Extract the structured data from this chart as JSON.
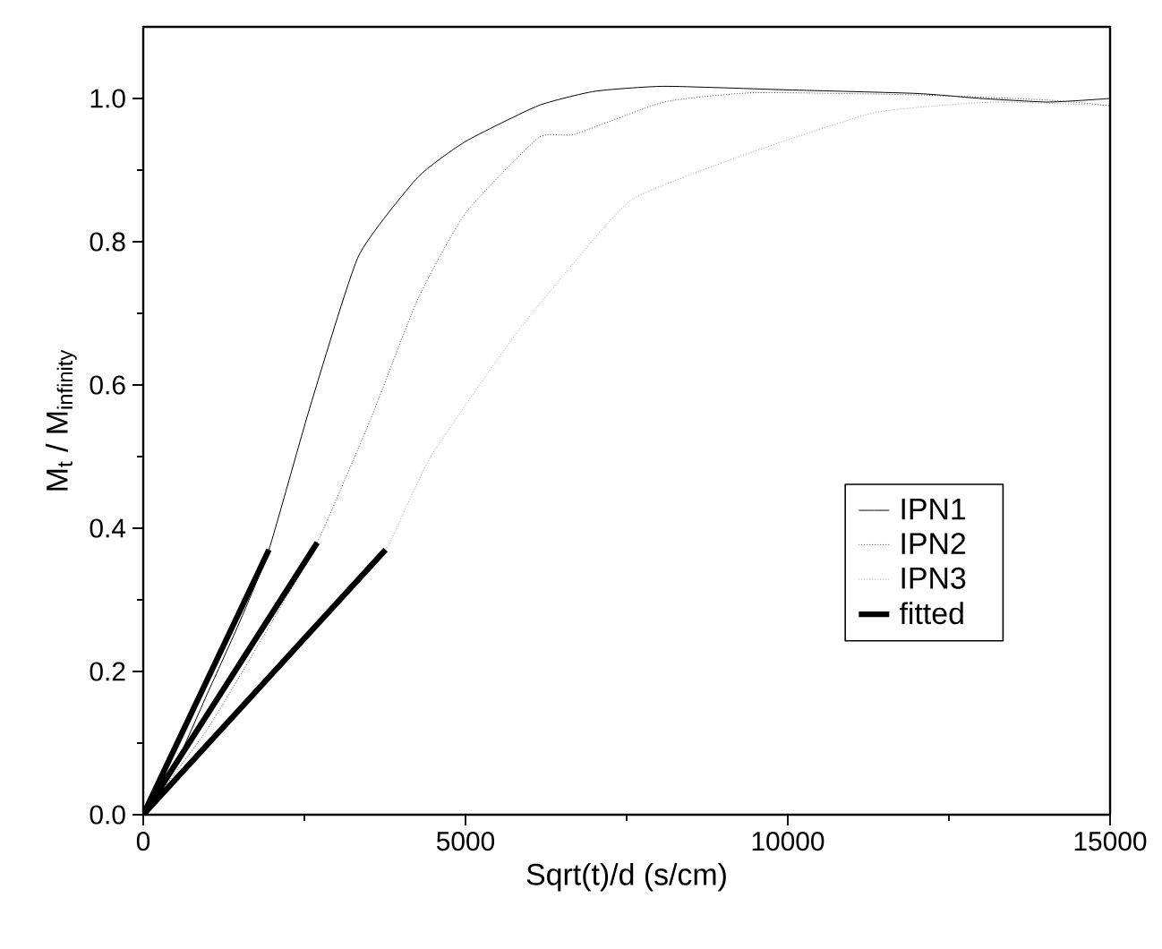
{
  "chart_data": {
    "type": "line",
    "xlabel": "Sqrt(t)/d (s/cm)",
    "ylabel": "M$_{t}$ / M$_{infinity}$",
    "xlim": [
      0,
      15000
    ],
    "ylim": [
      0,
      1.1
    ],
    "xticks": [
      0,
      5000,
      10000,
      15000
    ],
    "yticks": [
      {
        "value": 0,
        "label": "0.0"
      },
      {
        "value": 0.2,
        "label": "0.2"
      },
      {
        "value": 0.4,
        "label": "0.4"
      },
      {
        "value": 0.6,
        "label": "0.6"
      },
      {
        "value": 0.8,
        "label": "0.8"
      },
      {
        "value": 1.0,
        "label": "1.0"
      }
    ],
    "legend": "right",
    "marker": "none",
    "series": [
      {
        "name": "IPN1",
        "color": "#000000",
        "line_style": "solid",
        "x": [
          0,
          500,
          1000,
          1500,
          1950,
          2590,
          3340,
          4260,
          5000,
          6130,
          7000,
          8080,
          10000,
          12000,
          13000,
          14000,
          14500,
          15000
        ],
        "values": [
          0,
          0.07,
          0.17,
          0.27,
          0.37,
          0.57,
          0.78,
          0.89,
          0.94,
          0.99,
          1.01,
          1.017,
          1.012,
          1.007,
          1.0,
          0.995,
          0.997,
          1.0
        ]
      },
      {
        "name": "IPN2",
        "color": "#444444",
        "line_style": "dotted",
        "x": [
          0,
          1000,
          2000,
          2700,
          3540,
          4260,
          5000,
          6130,
          6690,
          8080,
          9470,
          12000,
          14000,
          15000
        ],
        "values": [
          0,
          0.12,
          0.27,
          0.38,
          0.555,
          0.72,
          0.84,
          0.945,
          0.95,
          0.995,
          1.008,
          1.005,
          0.998,
          0.99
        ]
      },
      {
        "name": "IPN3",
        "color": "#999999",
        "line_style": "dotted",
        "x": [
          0,
          1000,
          2000,
          3000,
          3760,
          4460,
          5770,
          6770,
          7600,
          9280,
          11340,
          13180,
          15000
        ],
        "values": [
          0,
          0.1,
          0.2,
          0.3,
          0.37,
          0.5,
          0.67,
          0.78,
          0.86,
          0.92,
          0.98,
          0.995,
          0.99
        ]
      },
      {
        "name": "fitted",
        "type": "line",
        "color": "#000000",
        "line_style": "solid",
        "x": [
          0,
          1950,
          null,
          0,
          2700,
          null,
          0,
          3760
        ],
        "values": [
          0,
          0.37,
          null,
          0,
          0.38,
          null,
          0,
          0.37
        ]
      }
    ]
  }
}
